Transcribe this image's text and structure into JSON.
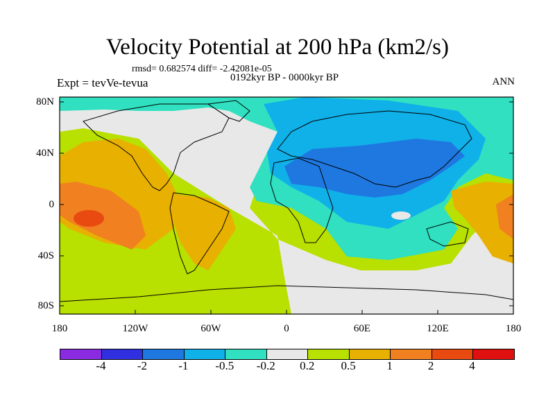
{
  "title": "Velocity Potential at 200 hPa (km2/s)",
  "stats": "rmsd= 0.682574 diff= -2.42081e-05",
  "period": "0192kyr BP - 0000kyr BP",
  "experiment": "Expt = tevVe-tevua",
  "season": "ANN",
  "lat_labels": [
    "80N",
    "40N",
    "0",
    "40S",
    "80S"
  ],
  "lon_labels": [
    "180",
    "120W",
    "60W",
    "0",
    "60E",
    "120E",
    "180"
  ],
  "colorbar": {
    "colors": [
      "#8a2be2",
      "#3030e0",
      "#1e78e0",
      "#10b0e8",
      "#30e0c0",
      "#e8e8e8",
      "#b8e000",
      "#e8b000",
      "#f08020",
      "#e84a10",
      "#e01010"
    ],
    "labels": [
      "-4",
      "-2",
      "-1",
      "-0.5",
      "-0.2",
      "0.2",
      "0.5",
      "1",
      "2",
      "4"
    ]
  }
}
